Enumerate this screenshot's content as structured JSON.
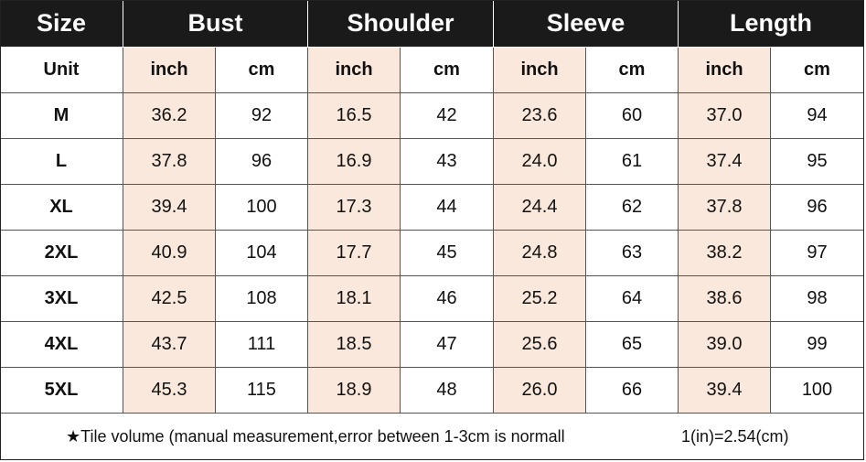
{
  "header": {
    "columns": [
      "Size",
      "Bust",
      "Shoulder",
      "Sleeve",
      "Length"
    ]
  },
  "units": {
    "label": "Unit",
    "cells": [
      "inch",
      "cm",
      "inch",
      "cm",
      "inch",
      "cm",
      "inch",
      "cm"
    ]
  },
  "rows": [
    [
      "M",
      "36.2",
      "92",
      "16.5",
      "42",
      "23.6",
      "60",
      "37.0",
      "94"
    ],
    [
      "L",
      "37.8",
      "96",
      "16.9",
      "43",
      "24.0",
      "61",
      "37.4",
      "95"
    ],
    [
      "XL",
      "39.4",
      "100",
      "17.3",
      "44",
      "24.4",
      "62",
      "37.8",
      "96"
    ],
    [
      "2XL",
      "40.9",
      "104",
      "17.7",
      "45",
      "24.8",
      "63",
      "38.2",
      "97"
    ],
    [
      "3XL",
      "42.5",
      "108",
      "18.1",
      "46",
      "25.2",
      "64",
      "38.6",
      "98"
    ],
    [
      "4XL",
      "43.7",
      "111",
      "18.5",
      "47",
      "25.6",
      "65",
      "39.0",
      "99"
    ],
    [
      "5XL",
      "45.3",
      "115",
      "18.9",
      "48",
      "26.0",
      "66",
      "39.4",
      "100"
    ]
  ],
  "footer": {
    "note": "★Tile volume (manual measurement,error between 1-3cm is normall",
    "conversion": "1(in)=2.54(cm)"
  }
}
